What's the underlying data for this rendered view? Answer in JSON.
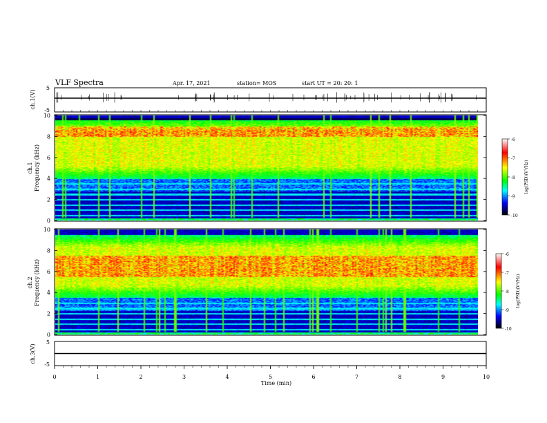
{
  "header": {
    "title": "VLF Spectra",
    "date": "Apr. 17, 2021",
    "station": "station= MOS",
    "start_ut": "start  UT =   20: 20: 1"
  },
  "colorbar": {
    "label": "log(PSD)(V²/Hz)",
    "ticks": [
      "-6",
      "-7",
      "-8",
      "-9",
      "-10"
    ],
    "colors": [
      "#ffffff",
      "#ff0000",
      "#ffff00",
      "#00ff00",
      "#00ffff",
      "#0000ff",
      "#000000"
    ]
  },
  "chart_data": [
    {
      "type": "line",
      "panel": "ch1-waveform",
      "ylabel": "ch.1(V)",
      "ylim": [
        -5,
        5
      ],
      "yticks": [
        "5",
        "-5"
      ],
      "x_units": "min",
      "xlim": [
        0,
        10
      ],
      "trace_level": 0
    },
    {
      "type": "heatmap",
      "panel": "ch1-spectrogram",
      "ylabel_line1": "ch.1",
      "ylabel_line2": "Frequency (kHz)",
      "ylim": [
        0,
        10
      ],
      "yticks": [
        "0",
        "2",
        "4",
        "6",
        "8",
        "10"
      ],
      "xlim": [
        0,
        9.8
      ],
      "z_range": [
        -10,
        -6
      ],
      "dominant_band_khz": [
        4,
        9.8
      ],
      "peak_band_khz": [
        8,
        9
      ],
      "steady_lines_khz": [
        0.5,
        1.0,
        1.5,
        2.0,
        2.5,
        3.0,
        3.5
      ]
    },
    {
      "type": "heatmap",
      "panel": "ch2-spectrogram",
      "ylabel_line1": "ch.2",
      "ylabel_line2": "Frequency (kHz)",
      "ylim": [
        0,
        10
      ],
      "yticks": [
        "0",
        "2",
        "4",
        "6",
        "8",
        "10"
      ],
      "xlim": [
        0,
        9.8
      ],
      "z_range": [
        -10,
        -6
      ],
      "dominant_band_khz": [
        3.5,
        9.5
      ],
      "peak_band_khz": [
        5.5,
        7.5
      ],
      "steady_lines_khz": [
        0.5,
        1.0,
        1.5,
        2.0,
        2.5,
        3.0
      ]
    },
    {
      "type": "line",
      "panel": "ch3-waveform",
      "ylabel": "ch.3(V)",
      "ylim": [
        -5,
        5
      ],
      "yticks": [
        "5",
        "-5"
      ],
      "xlabel": "Time  (min)",
      "xlim": [
        0,
        10
      ],
      "xticks": [
        "0",
        "1",
        "2",
        "3",
        "4",
        "5",
        "6",
        "7",
        "8",
        "9",
        "10"
      ],
      "trace_level": 0
    }
  ]
}
